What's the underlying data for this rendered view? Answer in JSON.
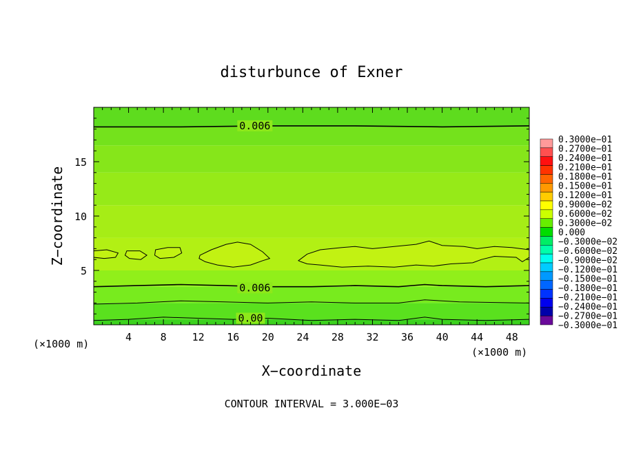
{
  "chart_data": {
    "type": "heatmap",
    "title": "disturbunce of Exner",
    "xlabel": "X−coordinate",
    "ylabel": "Z−coordinate",
    "x_unit": "(×1000 m)",
    "y_unit": "(×1000 m)",
    "xlim": [
      0,
      50
    ],
    "ylim": [
      0,
      20
    ],
    "x_ticks": [
      4,
      8,
      12,
      16,
      20,
      24,
      28,
      32,
      36,
      40,
      44,
      48
    ],
    "y_ticks": [
      5,
      10,
      15
    ],
    "contour_interval_text": "CONTOUR INTERVAL = 3.000E−03",
    "contour_labels": [
      {
        "text": "0.006",
        "x": 18.5,
        "y": 18.3
      },
      {
        "text": "0.006",
        "x": 18.5,
        "y": 3.4
      },
      {
        "text": "0.00",
        "x": 18.0,
        "y": 0.6
      }
    ],
    "contour_lines": [
      {
        "level": 0.006,
        "points": [
          [
            0,
            18.2
          ],
          [
            10,
            18.2
          ],
          [
            20,
            18.3
          ],
          [
            30,
            18.3
          ],
          [
            40,
            18.2
          ],
          [
            50,
            18.3
          ]
        ]
      },
      {
        "level": 0.006,
        "points": [
          [
            0,
            3.5
          ],
          [
            5,
            3.6
          ],
          [
            10,
            3.7
          ],
          [
            15,
            3.6
          ],
          [
            20,
            3.5
          ],
          [
            25,
            3.5
          ],
          [
            30,
            3.6
          ],
          [
            35,
            3.5
          ],
          [
            38,
            3.7
          ],
          [
            40,
            3.6
          ],
          [
            45,
            3.5
          ],
          [
            50,
            3.6
          ]
        ]
      },
      {
        "level": 0.003,
        "points": [
          [
            0,
            1.9
          ],
          [
            5,
            2.0
          ],
          [
            10,
            2.2
          ],
          [
            15,
            2.1
          ],
          [
            20,
            2.0
          ],
          [
            25,
            2.1
          ],
          [
            30,
            2.0
          ],
          [
            35,
            2.0
          ],
          [
            38,
            2.3
          ],
          [
            42,
            2.1
          ],
          [
            50,
            2.0
          ]
        ]
      },
      {
        "level": 0.0,
        "points": [
          [
            0,
            0.4
          ],
          [
            4,
            0.5
          ],
          [
            8,
            0.7
          ],
          [
            12,
            0.6
          ],
          [
            16,
            0.5
          ],
          [
            20,
            0.6
          ],
          [
            25,
            0.4
          ],
          [
            30,
            0.5
          ],
          [
            35,
            0.4
          ],
          [
            38,
            0.7
          ],
          [
            40,
            0.5
          ],
          [
            45,
            0.4
          ],
          [
            50,
            0.5
          ]
        ]
      }
    ],
    "closed_contours": [
      {
        "level": 0.009,
        "points": [
          [
            0,
            6.8
          ],
          [
            1.5,
            6.9
          ],
          [
            2.8,
            6.6
          ],
          [
            2.5,
            6.2
          ],
          [
            1.2,
            6.1
          ],
          [
            0,
            6.2
          ]
        ]
      },
      {
        "level": 0.009,
        "points": [
          [
            3.8,
            6.8
          ],
          [
            5.3,
            6.8
          ],
          [
            6.1,
            6.4
          ],
          [
            5.4,
            6.0
          ],
          [
            4.1,
            6.1
          ],
          [
            3.6,
            6.4
          ]
        ]
      },
      {
        "level": 0.009,
        "points": [
          [
            7.1,
            6.9
          ],
          [
            8.5,
            7.1
          ],
          [
            9.9,
            7.1
          ],
          [
            10.1,
            6.6
          ],
          [
            9.2,
            6.2
          ],
          [
            7.6,
            6.1
          ],
          [
            7.0,
            6.4
          ]
        ]
      },
      {
        "level": 0.009,
        "points": [
          [
            12.2,
            6.4
          ],
          [
            13.5,
            6.9
          ],
          [
            15.2,
            7.4
          ],
          [
            16.5,
            7.6
          ],
          [
            18.0,
            7.4
          ],
          [
            19.4,
            6.7
          ],
          [
            20.2,
            6.1
          ],
          [
            19.4,
            5.9
          ],
          [
            18.0,
            5.5
          ],
          [
            16.0,
            5.3
          ],
          [
            14.2,
            5.5
          ],
          [
            12.8,
            5.8
          ],
          [
            12.1,
            6.1
          ]
        ]
      },
      {
        "level": 0.009,
        "points": [
          [
            23.5,
            5.9
          ],
          [
            24.5,
            6.5
          ],
          [
            26.0,
            6.9
          ],
          [
            28.5,
            7.1
          ],
          [
            30.0,
            7.2
          ],
          [
            32.0,
            7.0
          ],
          [
            34.5,
            7.2
          ],
          [
            37.0,
            7.4
          ],
          [
            38.5,
            7.7
          ],
          [
            40.0,
            7.3
          ],
          [
            42.5,
            7.2
          ],
          [
            44.0,
            7.0
          ],
          [
            46.0,
            7.2
          ],
          [
            48.0,
            7.1
          ],
          [
            50,
            6.9
          ],
          [
            50,
            6.2
          ],
          [
            49.2,
            5.8
          ],
          [
            48.5,
            6.2
          ],
          [
            46.0,
            6.3
          ],
          [
            44.5,
            6.0
          ],
          [
            43.5,
            5.7
          ],
          [
            41.0,
            5.6
          ],
          [
            39.0,
            5.4
          ],
          [
            37.0,
            5.5
          ],
          [
            34.5,
            5.3
          ],
          [
            31.5,
            5.4
          ],
          [
            28.5,
            5.3
          ],
          [
            26.0,
            5.5
          ],
          [
            24.5,
            5.6
          ],
          [
            23.8,
            5.8
          ]
        ]
      }
    ],
    "colorbar": {
      "labels": [
        "0.3000e−01",
        "0.2700e−01",
        "0.2400e−01",
        "0.2100e−01",
        "0.1800e−01",
        "0.1500e−01",
        "0.1200e−01",
        "0.9000e−02",
        "0.6000e−02",
        "0.3000e−02",
        "0.000",
        "−0.3000e−02",
        "−0.6000e−02",
        "−0.9000e−02",
        "−0.1200e−01",
        "−0.1500e−01",
        "−0.1800e−01",
        "−0.2100e−01",
        "−0.2400e−01",
        "−0.2700e−01",
        "−0.3000e−01"
      ],
      "colors": [
        "#ff9a9a",
        "#ff5050",
        "#ff1010",
        "#ff3300",
        "#ff6600",
        "#ff9900",
        "#ffcc00",
        "#ffff00",
        "#ccff00",
        "#66ee00",
        "#00dd00",
        "#00ee66",
        "#00ffaa",
        "#00ffee",
        "#00ccff",
        "#0099ff",
        "#0066ff",
        "#0033ff",
        "#0000ee",
        "#0000aa",
        "#6a0a9a"
      ]
    },
    "bands": [
      {
        "from": 0.0,
        "to": 0.5,
        "color": "#3cd21e"
      },
      {
        "from": 0.5,
        "to": 2.0,
        "color": "#5ae11e"
      },
      {
        "from": 2.0,
        "to": 3.5,
        "color": "#78eb1e"
      },
      {
        "from": 3.5,
        "to": 5.0,
        "color": "#91ef1a"
      },
      {
        "from": 5.0,
        "to": 8.0,
        "color": "#b2f014"
      },
      {
        "from": 8.0,
        "to": 11.0,
        "color": "#a6ed16"
      },
      {
        "from": 11.0,
        "to": 14.0,
        "color": "#96ea18"
      },
      {
        "from": 14.0,
        "to": 16.5,
        "color": "#86e61a"
      },
      {
        "from": 16.5,
        "to": 18.2,
        "color": "#74e21c"
      },
      {
        "from": 18.2,
        "to": 20.0,
        "color": "#5edc1e"
      }
    ],
    "grid": false
  }
}
